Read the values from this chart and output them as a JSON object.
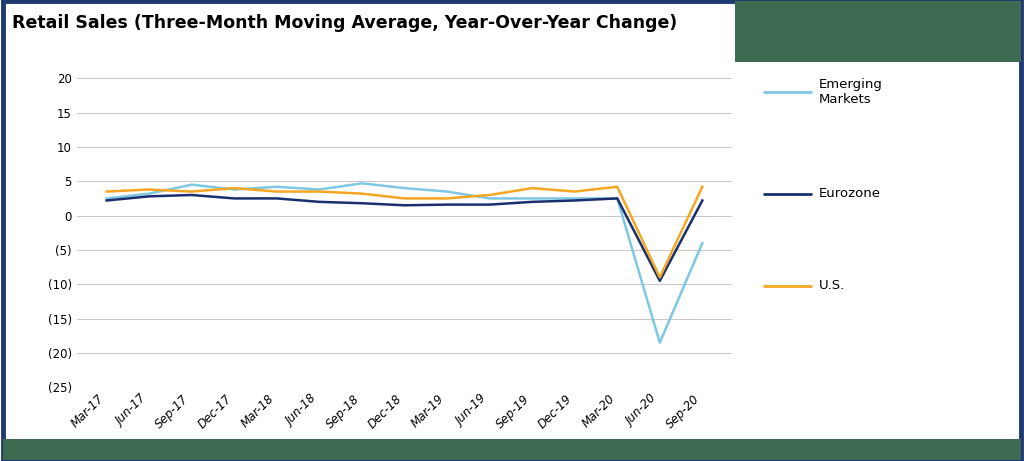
{
  "title": "Retail Sales (Three-Month Moving Average, Year-Over-Year Change)",
  "title_fontsize": 12.5,
  "background_color": "#ffffff",
  "plot_bg_color": "#ffffff",
  "border_color_outer": "#1f3a6e",
  "border_color_inner": "#3d6b52",
  "header_bg_color": "#3d6b52",
  "x_labels": [
    "Mar-17",
    "Jun-17",
    "Sep-17",
    "Dec-17",
    "Mar-18",
    "Jun-18",
    "Sep-18",
    "Dec-18",
    "Mar-19",
    "Jun-19",
    "Sep-19",
    "Dec-19",
    "Mar-20",
    "Jun-20",
    "Sep-20"
  ],
  "emerging_markets": [
    2.5,
    3.2,
    4.5,
    3.8,
    4.2,
    3.8,
    4.7,
    4.0,
    3.5,
    2.5,
    2.5,
    2.5,
    2.5,
    -18.5,
    -4.0
  ],
  "eurozone": [
    2.2,
    2.8,
    3.0,
    2.5,
    2.5,
    2.0,
    1.8,
    1.5,
    1.6,
    1.6,
    2.0,
    2.2,
    2.5,
    -9.5,
    2.2
  ],
  "us": [
    3.5,
    3.8,
    3.5,
    4.0,
    3.5,
    3.5,
    3.2,
    2.5,
    2.5,
    3.0,
    4.0,
    3.5,
    4.2,
    -9.0,
    4.2
  ],
  "em_color": "#7ec8e3",
  "ez_color": "#1a2f6e",
  "us_color": "#f5a623",
  "ylim": [
    -25,
    22
  ],
  "yticks": [
    20,
    15,
    10,
    5,
    0,
    -5,
    -10,
    -15,
    -20,
    -25
  ],
  "grid_color": "#c8c8c8",
  "tick_label_fontsize": 8.5,
  "legend_fontsize": 9.5
}
